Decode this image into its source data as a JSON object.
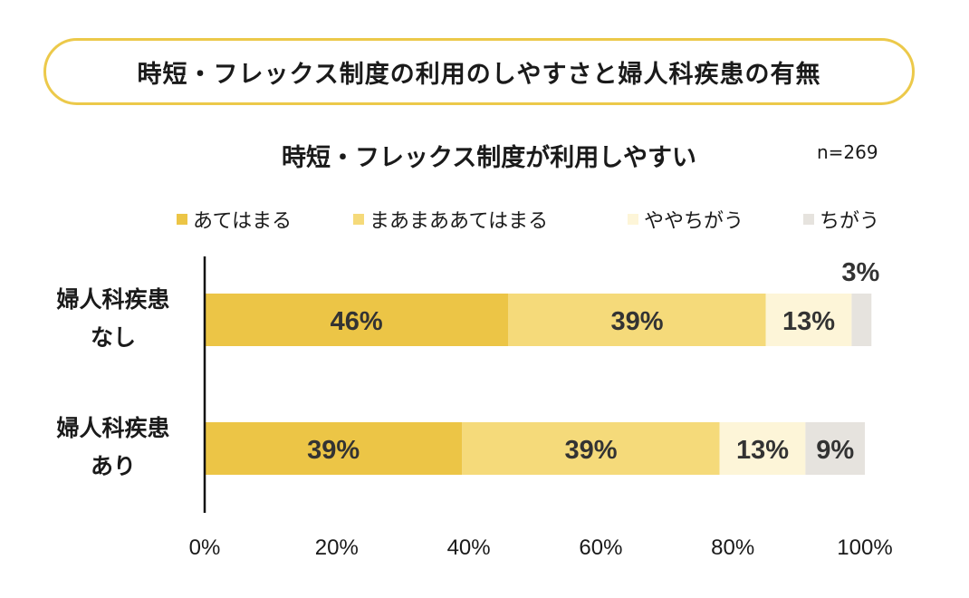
{
  "banner": {
    "title": "時短・フレックス制度の利用のしやすさと婦人科疾患の有無"
  },
  "chart_data": {
    "type": "bar",
    "orientation": "horizontal",
    "stacked": true,
    "title": "時短・フレックス制度が利用しやすい",
    "sample_size": "n=269",
    "categories": [
      {
        "line1": "婦人科疾患",
        "line2": "なし"
      },
      {
        "line1": "婦人科疾患",
        "line2": "あり"
      }
    ],
    "series": [
      {
        "name": "あてはまる",
        "color": "#ecc546",
        "values": [
          46,
          39
        ],
        "labels": [
          "46%",
          "39%"
        ]
      },
      {
        "name": "まあまああてはまる",
        "color": "#f5da7a",
        "values": [
          39,
          39
        ],
        "labels": [
          "39%",
          "39%"
        ]
      },
      {
        "name": "ややちがう",
        "color": "#fdf5d8",
        "values": [
          13,
          13
        ],
        "labels": [
          "13%",
          "13%"
        ]
      },
      {
        "name": "ちがう",
        "color": "#e6e3de",
        "values": [
          3,
          9
        ],
        "labels": [
          "3%",
          "9%"
        ]
      }
    ],
    "xlim": [
      0,
      100
    ],
    "x_ticks": [
      0,
      20,
      40,
      60,
      80,
      100
    ],
    "x_tick_labels": [
      "0%",
      "20%",
      "40%",
      "60%",
      "80%",
      "100%"
    ],
    "legend_position": "top"
  }
}
